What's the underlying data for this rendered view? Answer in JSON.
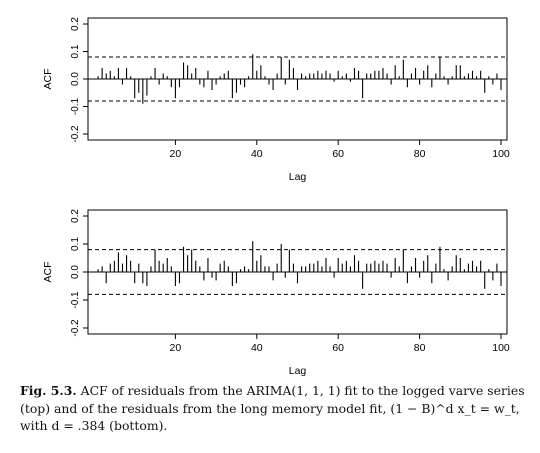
{
  "figure": {
    "caption_lead": "Fig. 5.3.",
    "caption_text": "ACF of residuals from the ARIMA(1, 1, 1) fit to the logged varve series (top) and of the residuals from the long memory model fit, (1 − B)^d x_t = w_t, with d = .384 (bottom)."
  },
  "chart_data": [
    {
      "type": "bar",
      "panel": "top",
      "xlabel": "Lag",
      "ylabel": "ACF",
      "xlim": [
        0,
        100
      ],
      "ylim": [
        -0.2,
        0.2
      ],
      "xticks": [
        20,
        40,
        60,
        80,
        100
      ],
      "yticks": [
        -0.2,
        -0.1,
        0.0,
        0.1,
        0.2
      ],
      "confidence_band": [
        -0.08,
        0.08
      ],
      "lags": [
        1,
        2,
        3,
        4,
        5,
        6,
        7,
        8,
        9,
        10,
        11,
        12,
        13,
        14,
        15,
        16,
        17,
        18,
        19,
        20,
        21,
        22,
        23,
        24,
        25,
        26,
        27,
        28,
        29,
        30,
        31,
        32,
        33,
        34,
        35,
        36,
        37,
        38,
        39,
        40,
        41,
        42,
        43,
        44,
        45,
        46,
        47,
        48,
        49,
        50,
        51,
        52,
        53,
        54,
        55,
        56,
        57,
        58,
        59,
        60,
        61,
        62,
        63,
        64,
        65,
        66,
        67,
        68,
        69,
        70,
        71,
        72,
        73,
        74,
        75,
        76,
        77,
        78,
        79,
        80,
        81,
        82,
        83,
        84,
        85,
        86,
        87,
        88,
        89,
        90,
        91,
        92,
        93,
        94,
        95,
        96,
        97,
        98,
        99,
        100
      ],
      "values": [
        0.01,
        0.04,
        0.02,
        0.03,
        0.01,
        0.04,
        -0.02,
        0.04,
        0.01,
        -0.07,
        -0.05,
        -0.09,
        -0.06,
        0.01,
        0.04,
        -0.02,
        0.02,
        0.01,
        -0.03,
        -0.07,
        -0.03,
        0.06,
        0.05,
        0.02,
        0.04,
        -0.02,
        -0.03,
        0.03,
        -0.04,
        -0.02,
        0.01,
        0.02,
        0.03,
        -0.07,
        -0.05,
        -0.02,
        -0.03,
        0.01,
        0.09,
        0.03,
        0.05,
        0.01,
        -0.02,
        -0.04,
        0.02,
        0.08,
        -0.02,
        0.07,
        0.04,
        -0.04,
        0.02,
        0.01,
        0.02,
        0.02,
        0.03,
        0.02,
        0.03,
        0.02,
        -0.01,
        0.03,
        0.01,
        0.02,
        -0.01,
        0.04,
        0.03,
        -0.07,
        0.02,
        0.02,
        0.03,
        0.03,
        0.04,
        0.02,
        -0.02,
        0.05,
        0.01,
        0.07,
        -0.03,
        0.02,
        0.04,
        -0.02,
        0.03,
        0.05,
        -0.03,
        0.02,
        0.08,
        0.01,
        -0.02,
        0.01,
        0.05,
        0.05,
        0.01,
        0.02,
        0.03,
        0.01,
        0.03,
        -0.05,
        0.01,
        -0.02,
        0.02,
        -0.04
      ]
    },
    {
      "type": "bar",
      "panel": "bottom",
      "xlabel": "Lag",
      "ylabel": "ACF",
      "xlim": [
        0,
        100
      ],
      "ylim": [
        -0.2,
        0.2
      ],
      "xticks": [
        20,
        40,
        60,
        80,
        100
      ],
      "yticks": [
        -0.2,
        -0.1,
        0.0,
        0.1,
        0.2
      ],
      "confidence_band": [
        -0.08,
        0.08
      ],
      "lags": [
        1,
        2,
        3,
        4,
        5,
        6,
        7,
        8,
        9,
        10,
        11,
        12,
        13,
        14,
        15,
        16,
        17,
        18,
        19,
        20,
        21,
        22,
        23,
        24,
        25,
        26,
        27,
        28,
        29,
        30,
        31,
        32,
        33,
        34,
        35,
        36,
        37,
        38,
        39,
        40,
        41,
        42,
        43,
        44,
        45,
        46,
        47,
        48,
        49,
        50,
        51,
        52,
        53,
        54,
        55,
        56,
        57,
        58,
        59,
        60,
        61,
        62,
        63,
        64,
        65,
        66,
        67,
        68,
        69,
        70,
        71,
        72,
        73,
        74,
        75,
        76,
        77,
        78,
        79,
        80,
        81,
        82,
        83,
        84,
        85,
        86,
        87,
        88,
        89,
        90,
        91,
        92,
        93,
        94,
        95,
        96,
        97,
        98,
        99,
        100
      ],
      "values": [
        0.01,
        0.02,
        -0.04,
        0.03,
        0.04,
        0.07,
        0.03,
        0.06,
        0.04,
        -0.04,
        0.03,
        -0.04,
        -0.05,
        0.02,
        0.08,
        0.04,
        0.03,
        0.05,
        0.02,
        -0.05,
        -0.04,
        0.09,
        0.06,
        0.08,
        0.04,
        0.02,
        -0.03,
        0.05,
        -0.02,
        -0.03,
        0.03,
        0.04,
        0.02,
        -0.05,
        -0.04,
        0.01,
        0.02,
        0.01,
        0.11,
        0.04,
        0.06,
        0.02,
        0.02,
        -0.03,
        0.03,
        0.1,
        -0.02,
        0.08,
        0.03,
        -0.04,
        0.02,
        0.02,
        0.03,
        0.03,
        0.04,
        0.02,
        0.05,
        0.02,
        -0.02,
        0.05,
        0.03,
        0.04,
        0.02,
        0.06,
        0.04,
        -0.06,
        0.03,
        0.03,
        0.04,
        0.03,
        0.04,
        0.03,
        -0.02,
        0.05,
        0.02,
        0.08,
        -0.04,
        0.02,
        0.05,
        -0.02,
        0.04,
        0.06,
        -0.04,
        0.03,
        0.09,
        0.01,
        -0.03,
        0.02,
        0.06,
        0.05,
        0.01,
        0.03,
        0.04,
        0.02,
        0.04,
        -0.06,
        0.01,
        -0.03,
        0.03,
        -0.05
      ]
    }
  ]
}
